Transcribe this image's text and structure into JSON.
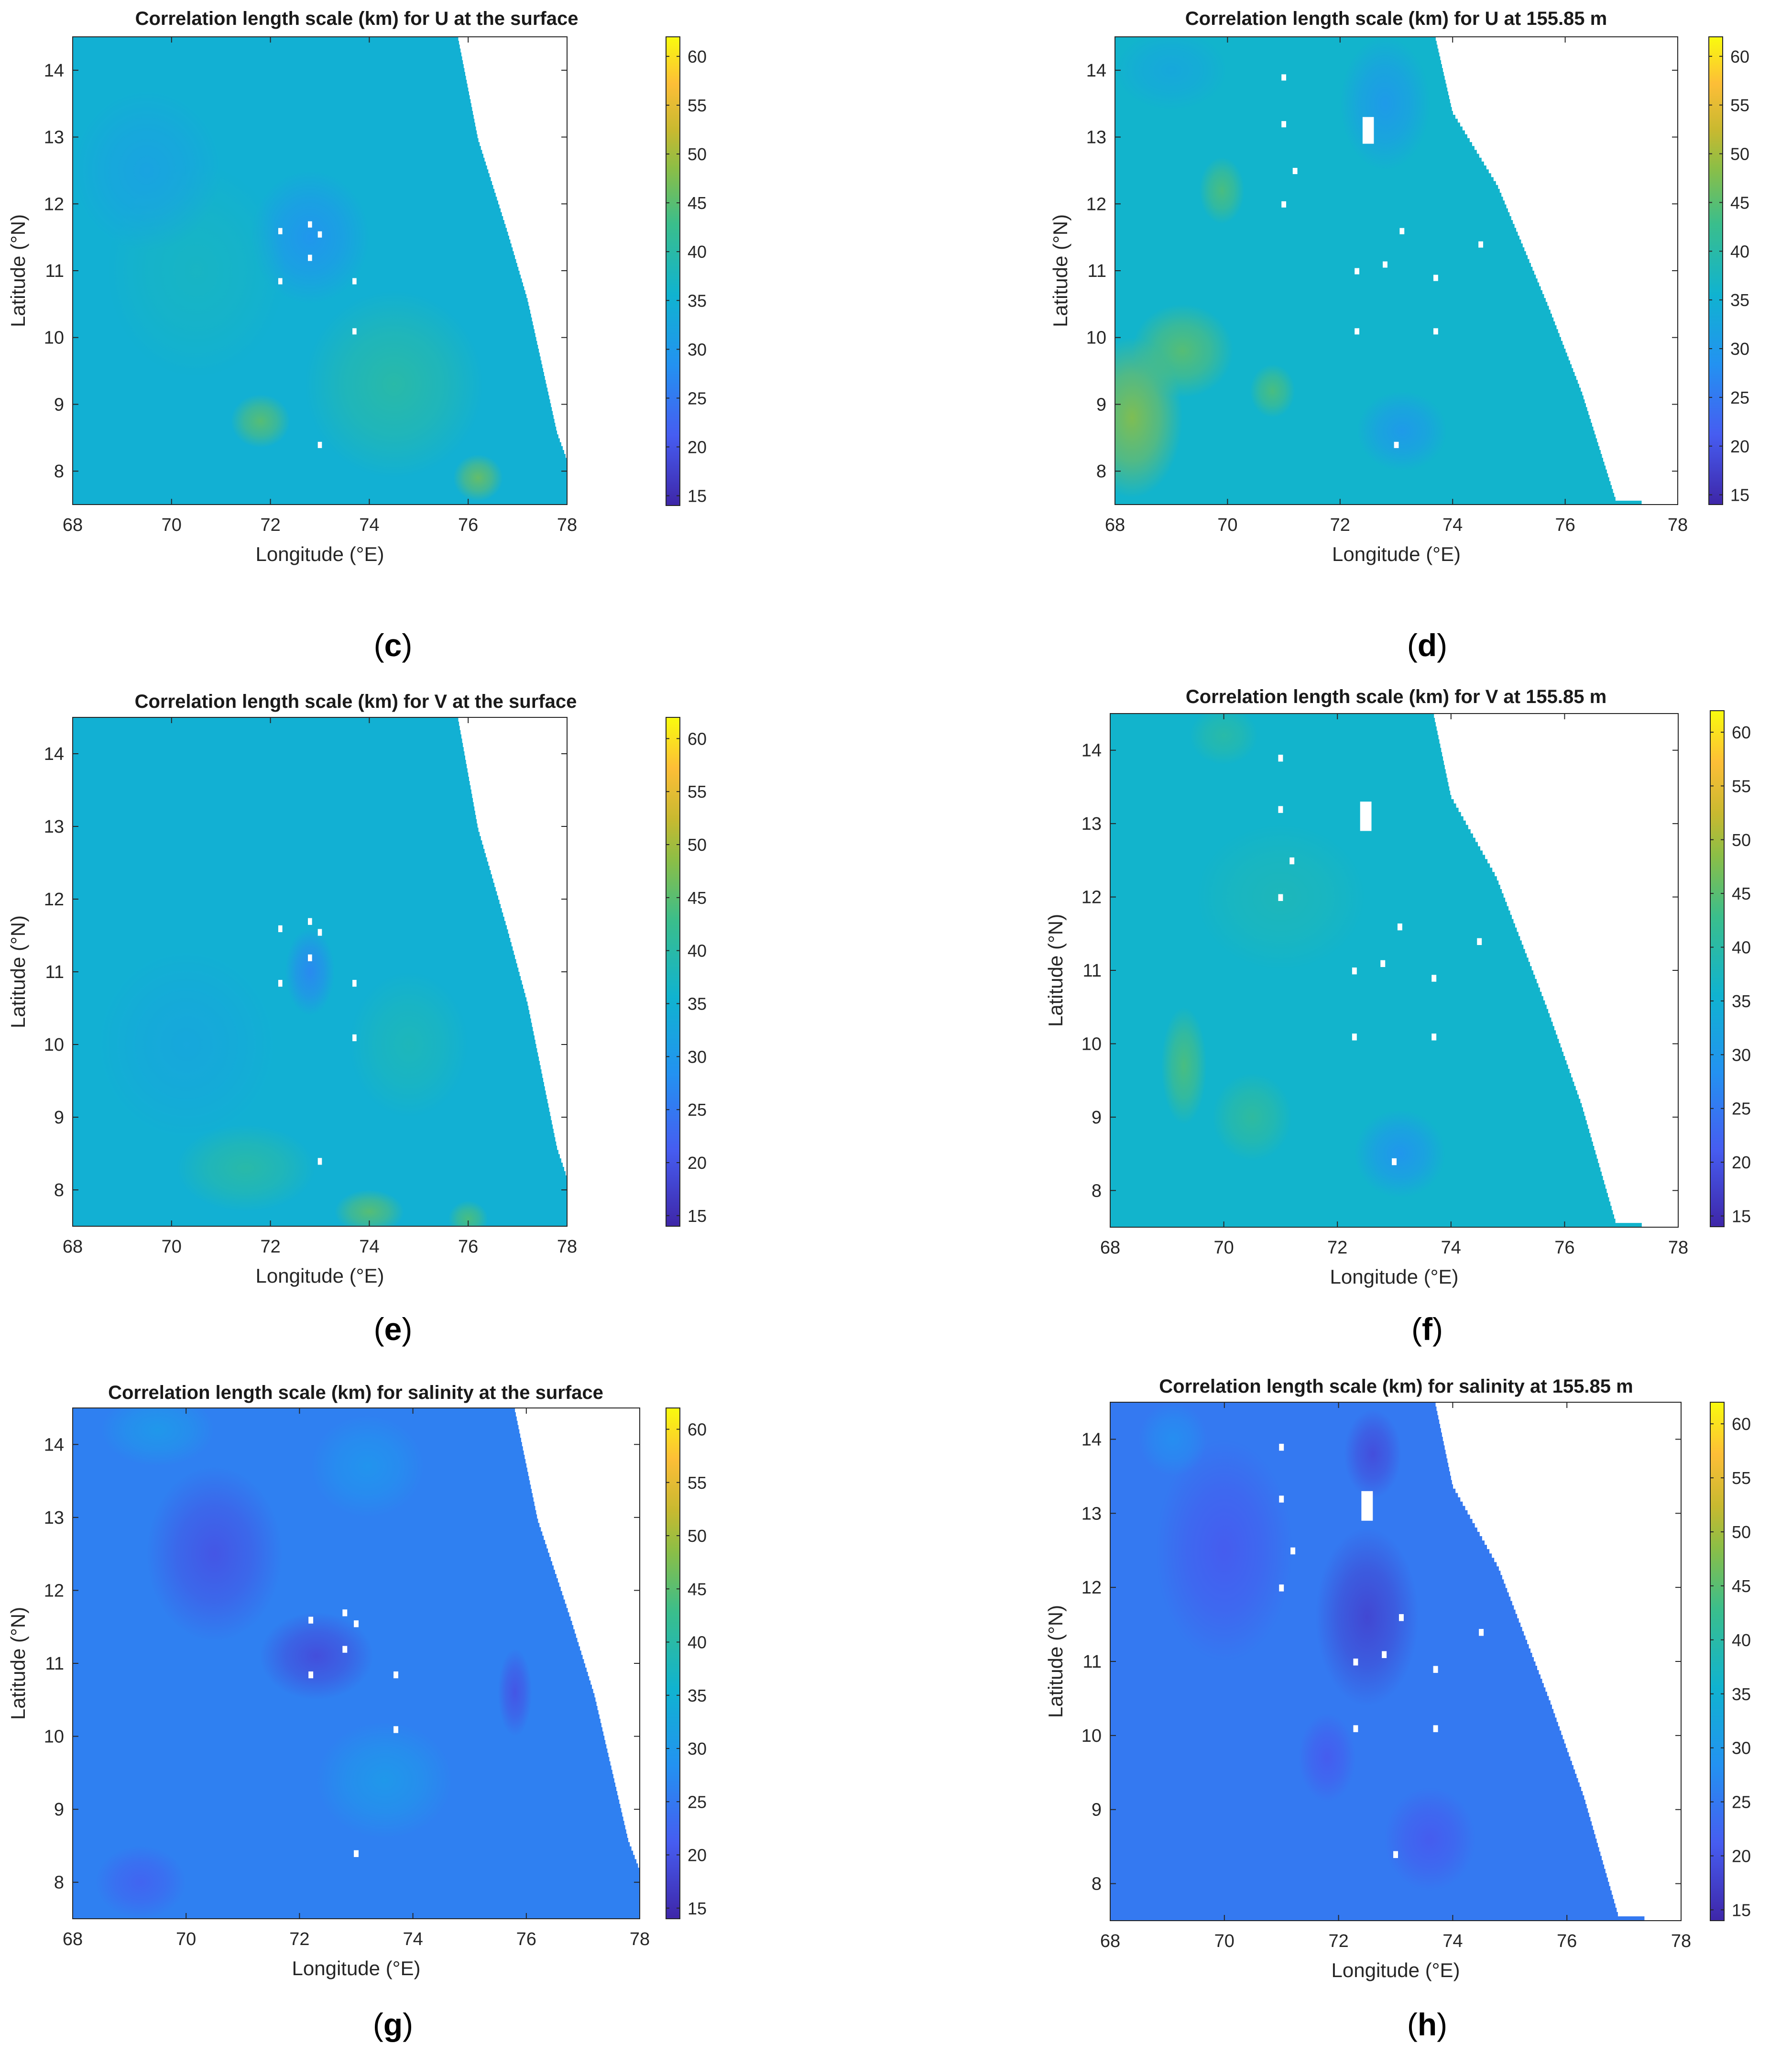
{
  "chart_data": [
    {
      "type": "heatmap",
      "panel_label": "(c)",
      "title": "Correlation length scale (km) for U at the surface",
      "xlabel": "Longitude (°E)",
      "ylabel": "Latitude (°N)",
      "xlim": [
        68,
        78
      ],
      "ylim": [
        7.5,
        14.5
      ],
      "x_ticks": [
        "68",
        "70",
        "72",
        "74",
        "76",
        "78"
      ],
      "y_ticks": [
        "8",
        "9",
        "10",
        "11",
        "12",
        "13",
        "14"
      ],
      "colorbar": {
        "range": [
          14,
          62
        ],
        "ticks": [
          "15",
          "20",
          "25",
          "30",
          "35",
          "40",
          "45",
          "50",
          "55",
          "60"
        ]
      },
      "coast": [
        [
          75.8,
          14.5
        ],
        [
          76.2,
          13.0
        ],
        [
          76.8,
          11.6
        ],
        [
          77.2,
          10.6
        ],
        [
          77.5,
          9.6
        ],
        [
          77.8,
          8.6
        ],
        [
          78.0,
          8.2
        ]
      ],
      "background": 35,
      "blobs": [
        [
          71.8,
          8.75,
          0.6,
          0.4,
          45
        ],
        [
          76.2,
          7.9,
          0.5,
          0.35,
          46
        ],
        [
          72.8,
          11.5,
          1.2,
          1.0,
          29
        ],
        [
          74.5,
          9.3,
          1.8,
          1.4,
          40
        ],
        [
          70.5,
          11.0,
          1.8,
          1.6,
          37
        ],
        [
          69.5,
          12.5,
          1.5,
          1.2,
          32
        ]
      ],
      "holes": [
        [
          72.2,
          11.6
        ],
        [
          72.8,
          11.7
        ],
        [
          73.0,
          11.55
        ],
        [
          72.8,
          11.2
        ],
        [
          72.2,
          10.85
        ],
        [
          73.7,
          10.85
        ],
        [
          73.7,
          10.1
        ],
        [
          73.0,
          8.4
        ]
      ]
    },
    {
      "type": "heatmap",
      "panel_label": "(d)",
      "title": "Correlation length scale (km) for U at 155.85 m",
      "xlabel": "Longitude (°E)",
      "ylabel": "Latitude (°N)",
      "xlim": [
        68,
        78
      ],
      "ylim": [
        7.5,
        14.5
      ],
      "x_ticks": [
        "68",
        "70",
        "72",
        "74",
        "76",
        "78"
      ],
      "y_ticks": [
        "8",
        "9",
        "10",
        "11",
        "12",
        "13",
        "14"
      ],
      "colorbar": {
        "range": [
          14,
          62
        ],
        "ticks": [
          "15",
          "20",
          "25",
          "30",
          "35",
          "40",
          "45",
          "50",
          "55",
          "60"
        ]
      },
      "coast": [
        [
          73.7,
          14.5
        ],
        [
          74.0,
          13.4
        ],
        [
          74.8,
          12.3
        ],
        [
          75.7,
          10.5
        ],
        [
          76.3,
          9.2
        ],
        [
          76.9,
          7.6
        ],
        [
          78.0,
          7.5
        ]
      ],
      "background": 36,
      "blobs": [
        [
          68.3,
          8.8,
          0.9,
          1.2,
          48
        ],
        [
          69.2,
          9.8,
          0.9,
          0.7,
          45
        ],
        [
          69.9,
          12.2,
          0.4,
          0.5,
          44
        ],
        [
          70.8,
          9.2,
          0.4,
          0.4,
          44
        ],
        [
          72.8,
          13.5,
          0.8,
          1.0,
          30
        ],
        [
          73.1,
          8.6,
          0.8,
          0.6,
          30
        ],
        [
          69.0,
          14.0,
          1.0,
          0.6,
          33
        ]
      ],
      "holes": [
        [
          71.0,
          13.9
        ],
        [
          71.0,
          13.2
        ],
        [
          71.2,
          12.5
        ],
        [
          71.0,
          12.0
        ],
        [
          72.3,
          11.0
        ],
        [
          72.8,
          11.1
        ],
        [
          73.1,
          11.6
        ],
        [
          72.3,
          10.1
        ],
        [
          73.7,
          10.9
        ],
        [
          73.7,
          10.1
        ],
        [
          74.5,
          11.4
        ],
        [
          73.0,
          8.4
        ]
      ],
      "hole_patches": [
        [
          72.5,
          13.1,
          0.2,
          0.4
        ]
      ]
    },
    {
      "type": "heatmap",
      "panel_label": "(e)",
      "title": "Correlation length scale (km) for V at the surface",
      "xlabel": "Longitude (°E)",
      "ylabel": "Latitude (°N)",
      "xlim": [
        68,
        78
      ],
      "ylim": [
        7.5,
        14.5
      ],
      "x_ticks": [
        "68",
        "70",
        "72",
        "74",
        "76",
        "78"
      ],
      "y_ticks": [
        "8",
        "9",
        "10",
        "11",
        "12",
        "13",
        "14"
      ],
      "colorbar": {
        "range": [
          14,
          62
        ],
        "ticks": [
          "15",
          "20",
          "25",
          "30",
          "35",
          "40",
          "45",
          "50",
          "55",
          "60"
        ]
      },
      "coast": [
        [
          75.8,
          14.5
        ],
        [
          76.2,
          13.0
        ],
        [
          76.8,
          11.6
        ],
        [
          77.2,
          10.6
        ],
        [
          77.5,
          9.6
        ],
        [
          77.8,
          8.6
        ],
        [
          78.0,
          8.2
        ]
      ],
      "background": 35,
      "blobs": [
        [
          72.8,
          11.0,
          0.5,
          0.6,
          27
        ],
        [
          74.0,
          7.7,
          0.7,
          0.3,
          45
        ],
        [
          76.0,
          7.6,
          0.4,
          0.25,
          44
        ],
        [
          70.3,
          10.0,
          1.8,
          1.3,
          33
        ],
        [
          74.8,
          10.0,
          1.2,
          1.0,
          38
        ],
        [
          71.5,
          8.3,
          1.4,
          0.6,
          40
        ]
      ],
      "holes": [
        [
          72.2,
          11.6
        ],
        [
          72.8,
          11.7
        ],
        [
          73.0,
          11.55
        ],
        [
          72.8,
          11.2
        ],
        [
          72.2,
          10.85
        ],
        [
          73.7,
          10.85
        ],
        [
          73.7,
          10.1
        ],
        [
          73.0,
          8.4
        ]
      ]
    },
    {
      "type": "heatmap",
      "panel_label": "(f)",
      "title": "Correlation length scale (km) for V at 155.85 m",
      "xlabel": "Longitude (°E)",
      "ylabel": "Latitude (°N)",
      "xlim": [
        68,
        78
      ],
      "ylim": [
        7.5,
        14.5
      ],
      "x_ticks": [
        "68",
        "70",
        "72",
        "74",
        "76",
        "78"
      ],
      "y_ticks": [
        "8",
        "9",
        "10",
        "11",
        "12",
        "13",
        "14"
      ],
      "colorbar": {
        "range": [
          14,
          62
        ],
        "ticks": [
          "15",
          "20",
          "25",
          "30",
          "35",
          "40",
          "45",
          "50",
          "55",
          "60"
        ]
      },
      "coast": [
        [
          73.7,
          14.5
        ],
        [
          74.0,
          13.4
        ],
        [
          74.8,
          12.3
        ],
        [
          75.7,
          10.5
        ],
        [
          76.3,
          9.2
        ],
        [
          76.9,
          7.6
        ],
        [
          78.0,
          7.5
        ]
      ],
      "background": 36,
      "blobs": [
        [
          69.3,
          9.7,
          0.4,
          0.8,
          44
        ],
        [
          70.5,
          9.0,
          0.7,
          0.6,
          41
        ],
        [
          73.1,
          8.5,
          0.8,
          0.6,
          29
        ],
        [
          70.0,
          14.2,
          0.6,
          0.4,
          40
        ],
        [
          71.0,
          12.0,
          1.5,
          1.0,
          38
        ]
      ],
      "holes": [
        [
          71.0,
          13.9
        ],
        [
          71.0,
          13.2
        ],
        [
          71.2,
          12.5
        ],
        [
          71.0,
          12.0
        ],
        [
          72.3,
          11.0
        ],
        [
          72.8,
          11.1
        ],
        [
          73.1,
          11.6
        ],
        [
          72.3,
          10.1
        ],
        [
          73.7,
          10.9
        ],
        [
          73.7,
          10.1
        ],
        [
          74.5,
          11.4
        ],
        [
          73.0,
          8.4
        ]
      ],
      "hole_patches": [
        [
          72.5,
          13.1,
          0.2,
          0.4
        ]
      ]
    },
    {
      "type": "heatmap",
      "panel_label": "(g)",
      "title": "Correlation length scale (km) for salinity at the surface",
      "xlabel": "Longitude (°E)",
      "ylabel": "Latitude (°N)",
      "xlim": [
        68,
        78
      ],
      "ylim": [
        7.5,
        14.5
      ],
      "x_ticks": [
        "68",
        "70",
        "72",
        "74",
        "76",
        "78"
      ],
      "y_ticks": [
        "8",
        "9",
        "10",
        "11",
        "12",
        "13",
        "14"
      ],
      "colorbar": {
        "range": [
          14,
          62
        ],
        "ticks": [
          "15",
          "20",
          "25",
          "30",
          "35",
          "40",
          "45",
          "50",
          "55",
          "60"
        ]
      },
      "coast": [
        [
          75.8,
          14.5
        ],
        [
          76.2,
          13.0
        ],
        [
          76.8,
          11.6
        ],
        [
          77.2,
          10.6
        ],
        [
          77.5,
          9.6
        ],
        [
          77.8,
          8.6
        ],
        [
          78.0,
          8.2
        ]
      ],
      "background": 26,
      "blobs": [
        [
          70.5,
          12.5,
          1.2,
          1.2,
          20
        ],
        [
          72.3,
          11.1,
          1.0,
          0.6,
          19
        ],
        [
          75.8,
          10.6,
          0.3,
          0.6,
          20
        ],
        [
          69.2,
          8.0,
          0.8,
          0.5,
          22
        ],
        [
          73.5,
          9.4,
          1.2,
          0.8,
          30
        ],
        [
          69.5,
          14.2,
          1.0,
          0.5,
          30
        ],
        [
          73.2,
          13.7,
          1.0,
          0.7,
          29
        ]
      ],
      "holes": [
        [
          72.2,
          11.6
        ],
        [
          72.8,
          11.7
        ],
        [
          73.0,
          11.55
        ],
        [
          72.8,
          11.2
        ],
        [
          72.2,
          10.85
        ],
        [
          73.7,
          10.85
        ],
        [
          73.7,
          10.1
        ],
        [
          73.0,
          8.4
        ]
      ]
    },
    {
      "type": "heatmap",
      "panel_label": "(h)",
      "title": "Correlation length scale (km) for salinity at 155.85 m",
      "xlabel": "Longitude (°E)",
      "ylabel": "Latitude (°N)",
      "xlim": [
        68,
        78
      ],
      "ylim": [
        7.5,
        14.5
      ],
      "x_ticks": [
        "68",
        "70",
        "72",
        "74",
        "76",
        "78"
      ],
      "y_ticks": [
        "8",
        "9",
        "10",
        "11",
        "12",
        "13",
        "14"
      ],
      "colorbar": {
        "range": [
          14,
          62
        ],
        "ticks": [
          "15",
          "20",
          "25",
          "30",
          "35",
          "40",
          "45",
          "50",
          "55",
          "60"
        ]
      },
      "coast": [
        [
          73.7,
          14.5
        ],
        [
          74.0,
          13.4
        ],
        [
          74.8,
          12.3
        ],
        [
          75.7,
          10.5
        ],
        [
          76.3,
          9.2
        ],
        [
          76.9,
          7.6
        ],
        [
          78.0,
          7.5
        ]
      ],
      "background": 25,
      "blobs": [
        [
          72.5,
          11.6,
          0.9,
          1.2,
          18
        ],
        [
          72.6,
          13.8,
          0.5,
          0.6,
          19
        ],
        [
          70.0,
          12.5,
          1.2,
          1.5,
          21
        ],
        [
          71.8,
          9.7,
          0.5,
          0.6,
          21
        ],
        [
          73.6,
          8.6,
          0.8,
          0.7,
          21
        ],
        [
          69.1,
          14.0,
          0.6,
          0.5,
          28
        ]
      ],
      "holes": [
        [
          71.0,
          13.9
        ],
        [
          71.0,
          13.2
        ],
        [
          71.2,
          12.5
        ],
        [
          71.0,
          12.0
        ],
        [
          72.3,
          11.0
        ],
        [
          72.8,
          11.1
        ],
        [
          73.1,
          11.6
        ],
        [
          72.3,
          10.1
        ],
        [
          73.7,
          10.9
        ],
        [
          73.7,
          10.1
        ],
        [
          74.5,
          11.4
        ],
        [
          73.0,
          8.4
        ]
      ],
      "hole_patches": [
        [
          72.5,
          13.1,
          0.2,
          0.4
        ]
      ]
    }
  ]
}
